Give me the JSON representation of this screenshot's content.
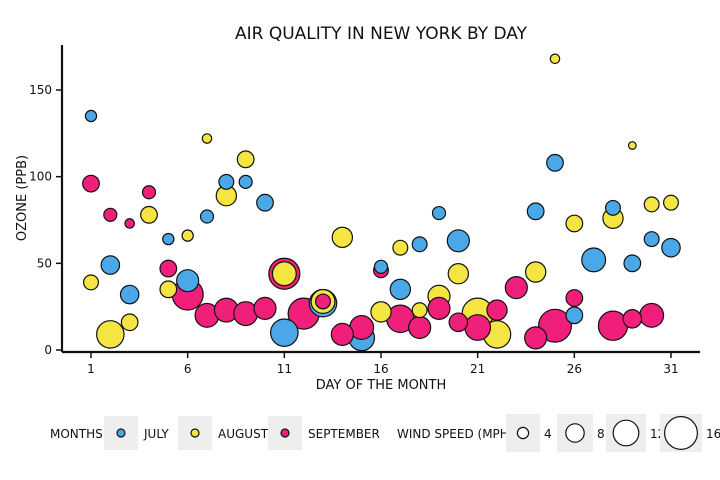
{
  "chart_data": {
    "type": "scatter",
    "title": "AIR QUALITY IN NEW YORK BY DAY",
    "xlabel": "DAY OF THE MONTH",
    "ylabel": "OZONE (PPB)",
    "xlim": [
      0,
      32
    ],
    "ylim": [
      0,
      175
    ],
    "x_ticks": [
      1,
      6,
      11,
      16,
      21,
      26,
      31
    ],
    "y_ticks": [
      0,
      50,
      100,
      150
    ],
    "colors": {
      "July": "#4aa8e8",
      "August": "#f5e542",
      "September": "#f0207a"
    },
    "legend": {
      "months_title": "MONTHS",
      "months": [
        {
          "label": "JULY",
          "color": "#4aa8e8"
        },
        {
          "label": "AUGUST",
          "color": "#f5e542"
        },
        {
          "label": "SEPTEMBER",
          "color": "#f0207a"
        }
      ],
      "wind_title": "WIND SPEED (MPH)",
      "wind_sizes": [
        {
          "label": "4",
          "value": 4
        },
        {
          "label": "8",
          "value": 8
        },
        {
          "label": "12",
          "value": 12
        },
        {
          "label": "16",
          "value": 16
        }
      ]
    },
    "series": [
      {
        "name": "JULY",
        "color": "#4aa8e8",
        "points": [
          {
            "day": 1,
            "ozone": 135,
            "wind": 4
          },
          {
            "day": 2,
            "ozone": 49,
            "wind": 8
          },
          {
            "day": 3,
            "ozone": 32,
            "wind": 8
          },
          {
            "day": 5,
            "ozone": 64,
            "wind": 4
          },
          {
            "day": 6,
            "ozone": 40,
            "wind": 10
          },
          {
            "day": 7,
            "ozone": 77,
            "wind": 5
          },
          {
            "day": 8,
            "ozone": 97,
            "wind": 6
          },
          {
            "day": 9,
            "ozone": 97,
            "wind": 5
          },
          {
            "day": 10,
            "ozone": 85,
            "wind": 7
          },
          {
            "day": 11,
            "ozone": 10,
            "wind": 13
          },
          {
            "day": 13,
            "ozone": 27,
            "wind": 13
          },
          {
            "day": 15,
            "ozone": 7,
            "wind": 12
          },
          {
            "day": 16,
            "ozone": 48,
            "wind": 5
          },
          {
            "day": 17,
            "ozone": 35,
            "wind": 9
          },
          {
            "day": 18,
            "ozone": 61,
            "wind": 6
          },
          {
            "day": 19,
            "ozone": 79,
            "wind": 5
          },
          {
            "day": 20,
            "ozone": 63,
            "wind": 10
          },
          {
            "day": 24,
            "ozone": 80,
            "wind": 7
          },
          {
            "day": 25,
            "ozone": 108,
            "wind": 7
          },
          {
            "day": 26,
            "ozone": 20,
            "wind": 7
          },
          {
            "day": 27,
            "ozone": 52,
            "wind": 11
          },
          {
            "day": 28,
            "ozone": 82,
            "wind": 6
          },
          {
            "day": 29,
            "ozone": 50,
            "wind": 7
          },
          {
            "day": 30,
            "ozone": 64,
            "wind": 6
          },
          {
            "day": 31,
            "ozone": 59,
            "wind": 8
          }
        ]
      },
      {
        "name": "AUGUST",
        "color": "#f5e542",
        "points": [
          {
            "day": 1,
            "ozone": 39,
            "wind": 6
          },
          {
            "day": 2,
            "ozone": 9,
            "wind": 13
          },
          {
            "day": 3,
            "ozone": 16,
            "wind": 7
          },
          {
            "day": 4,
            "ozone": 78,
            "wind": 7
          },
          {
            "day": 5,
            "ozone": 35,
            "wind": 7
          },
          {
            "day": 6,
            "ozone": 66,
            "wind": 4
          },
          {
            "day": 7,
            "ozone": 122,
            "wind": 3
          },
          {
            "day": 8,
            "ozone": 89,
            "wind": 9
          },
          {
            "day": 9,
            "ozone": 110,
            "wind": 7
          },
          {
            "day": 11,
            "ozone": 44,
            "wind": 11
          },
          {
            "day": 13,
            "ozone": 28,
            "wind": 11
          },
          {
            "day": 14,
            "ozone": 65,
            "wind": 9
          },
          {
            "day": 16,
            "ozone": 22,
            "wind": 9
          },
          {
            "day": 17,
            "ozone": 59,
            "wind": 6
          },
          {
            "day": 18,
            "ozone": 23,
            "wind": 6
          },
          {
            "day": 19,
            "ozone": 31,
            "wind": 10
          },
          {
            "day": 20,
            "ozone": 44,
            "wind": 9
          },
          {
            "day": 21,
            "ozone": 21,
            "wind": 15
          },
          {
            "day": 22,
            "ozone": 9,
            "wind": 13
          },
          {
            "day": 24,
            "ozone": 45,
            "wind": 9
          },
          {
            "day": 25,
            "ozone": 168,
            "wind": 3
          },
          {
            "day": 26,
            "ozone": 73,
            "wind": 7
          },
          {
            "day": 28,
            "ozone": 76,
            "wind": 9
          },
          {
            "day": 29,
            "ozone": 118,
            "wind": 2
          },
          {
            "day": 30,
            "ozone": 84,
            "wind": 6
          },
          {
            "day": 31,
            "ozone": 85,
            "wind": 6
          }
        ]
      },
      {
        "name": "SEPTEMBER",
        "color": "#f0207a",
        "points": [
          {
            "day": 1,
            "ozone": 96,
            "wind": 7
          },
          {
            "day": 2,
            "ozone": 78,
            "wind": 5
          },
          {
            "day": 3,
            "ozone": 73,
            "wind": 3
          },
          {
            "day": 4,
            "ozone": 91,
            "wind": 5
          },
          {
            "day": 5,
            "ozone": 47,
            "wind": 7
          },
          {
            "day": 6,
            "ozone": 32,
            "wind": 15
          },
          {
            "day": 7,
            "ozone": 20,
            "wind": 11
          },
          {
            "day": 8,
            "ozone": 23,
            "wind": 11
          },
          {
            "day": 9,
            "ozone": 21,
            "wind": 11
          },
          {
            "day": 10,
            "ozone": 24,
            "wind": 10
          },
          {
            "day": 11,
            "ozone": 44,
            "wind": 15
          },
          {
            "day": 12,
            "ozone": 21,
            "wind": 15
          },
          {
            "day": 13,
            "ozone": 28,
            "wind": 6
          },
          {
            "day": 14,
            "ozone": 9,
            "wind": 10
          },
          {
            "day": 15,
            "ozone": 13,
            "wind": 11
          },
          {
            "day": 16,
            "ozone": 46,
            "wind": 6
          },
          {
            "day": 17,
            "ozone": 18,
            "wind": 13
          },
          {
            "day": 18,
            "ozone": 13,
            "wind": 10
          },
          {
            "day": 19,
            "ozone": 24,
            "wind": 10
          },
          {
            "day": 20,
            "ozone": 16,
            "wind": 8
          },
          {
            "day": 21,
            "ozone": 13,
            "wind": 12
          },
          {
            "day": 22,
            "ozone": 23,
            "wind": 9
          },
          {
            "day": 23,
            "ozone": 36,
            "wind": 10
          },
          {
            "day": 24,
            "ozone": 7,
            "wind": 10
          },
          {
            "day": 25,
            "ozone": 14,
            "wind": 16
          },
          {
            "day": 26,
            "ozone": 30,
            "wind": 7
          },
          {
            "day": 28,
            "ozone": 14,
            "wind": 14
          },
          {
            "day": 29,
            "ozone": 18,
            "wind": 8
          },
          {
            "day": 30,
            "ozone": 20,
            "wind": 11
          }
        ]
      }
    ]
  }
}
